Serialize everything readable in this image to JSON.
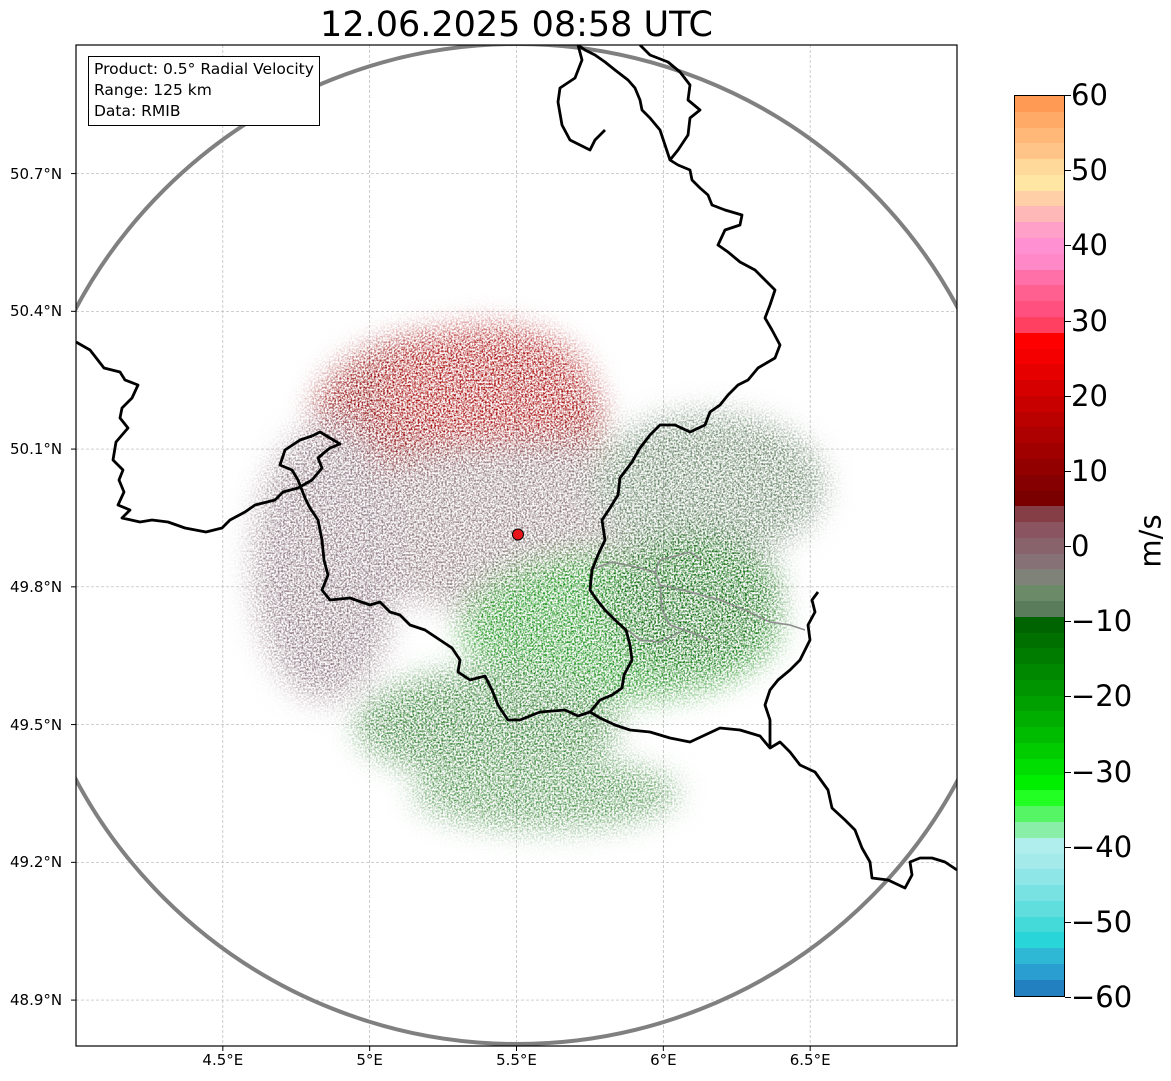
{
  "title": "12.06.2025 08:58 UTC",
  "info_box": {
    "product": "Product: 0.5° Radial Velocity",
    "range": "Range: 125 km",
    "data": "Data: RMIB"
  },
  "map": {
    "extent": {
      "lon_min": 4.0,
      "lon_max": 7.0,
      "lat_min": 48.8,
      "lat_max": 50.98
    },
    "lat_ticks": [
      {
        "value": 48.9,
        "label": "48.9°N"
      },
      {
        "value": 49.2,
        "label": "49.2°N"
      },
      {
        "value": 49.5,
        "label": "49.5°N"
      },
      {
        "value": 49.8,
        "label": "49.8°N"
      },
      {
        "value": 50.1,
        "label": "50.1°N"
      },
      {
        "value": 50.4,
        "label": "50.4°N"
      },
      {
        "value": 50.7,
        "label": "50.7°N"
      }
    ],
    "lon_ticks": [
      {
        "value": 4.5,
        "label": "4.5°E"
      },
      {
        "value": 5.0,
        "label": "5°E"
      },
      {
        "value": 5.5,
        "label": "5.5°E"
      },
      {
        "value": 6.0,
        "label": "6°E"
      },
      {
        "value": 6.5,
        "label": "6.5°E"
      }
    ],
    "radar_site": {
      "lon": 5.505,
      "lat": 49.914,
      "color": "#e8141a"
    },
    "range_ring_color": "#808080",
    "border_color": "#000000",
    "admin_border_color": "#8c8c8c",
    "grid": true,
    "velocity_zones": [
      {
        "name": "outbound-strong",
        "lon": 5.3,
        "lat": 50.16,
        "rlon": 0.5,
        "rlat": 0.2,
        "color": "#8e0000"
      },
      {
        "name": "outbound-core",
        "lon": 5.4,
        "lat": 50.24,
        "rlon": 0.35,
        "rlat": 0.13,
        "color": "#a40000"
      },
      {
        "name": "near-zero-band",
        "lon": 5.55,
        "lat": 49.92,
        "rlon": 0.7,
        "rlat": 0.18,
        "color": "#8a7378"
      },
      {
        "name": "near-zero-east",
        "lon": 6.15,
        "lat": 50.02,
        "rlon": 0.4,
        "rlat": 0.16,
        "color": "#5e7d5e"
      },
      {
        "name": "near-zero-west",
        "lon": 4.85,
        "lat": 49.85,
        "rlon": 0.25,
        "rlat": 0.3,
        "color": "#87707a"
      },
      {
        "name": "inbound-core",
        "lon": 5.85,
        "lat": 49.72,
        "rlon": 0.55,
        "rlat": 0.17,
        "color": "#0f8a0f"
      },
      {
        "name": "inbound-strong",
        "lon": 6.1,
        "lat": 49.78,
        "rlon": 0.3,
        "rlat": 0.16,
        "color": "#006400"
      },
      {
        "name": "inbound-south",
        "lon": 5.4,
        "lat": 49.5,
        "rlon": 0.45,
        "rlat": 0.12,
        "color": "#2a7a2a"
      },
      {
        "name": "sparse-south",
        "lon": 5.6,
        "lat": 49.35,
        "rlon": 0.45,
        "rlat": 0.08,
        "color": "#3f8b3f"
      }
    ]
  },
  "colorbar": {
    "unit": "m/s",
    "vmin": -60,
    "vmax": 60,
    "tick_values": [
      60,
      50,
      40,
      30,
      20,
      10,
      0,
      -10,
      -20,
      -30,
      -40,
      -50,
      -60
    ],
    "tick_labels": [
      "60",
      "50",
      "40",
      "30",
      "20",
      "10",
      "0",
      "−10",
      "−20",
      "−30",
      "−40",
      "−50",
      "−60"
    ],
    "colors_top_to_bottom": [
      "#ff9a55",
      "#ffaa66",
      "#ffb877",
      "#ffc588",
      "#ffd99a",
      "#ffe6a2",
      "#ffd0a8",
      "#ffb8b8",
      "#ffa0c8",
      "#ff90d2",
      "#ff88c8",
      "#ff70a8",
      "#ff6090",
      "#ff5080",
      "#ff4060",
      "#ff0000",
      "#f50000",
      "#e60000",
      "#d60000",
      "#c80000",
      "#bb0000",
      "#ad0000",
      "#a00000",
      "#920000",
      "#850000",
      "#7a0000",
      "#853e45",
      "#8a5560",
      "#88636c",
      "#867176",
      "#7e8278",
      "#6a8a68",
      "#5a7c5a",
      "#006400",
      "#007000",
      "#007c00",
      "#008800",
      "#009400",
      "#00a000",
      "#00ae00",
      "#00bc00",
      "#00cc00",
      "#00dd00",
      "#00ee00",
      "#22ff22",
      "#55f566",
      "#88eea8",
      "#b0eeee",
      "#a5eaea",
      "#8ee6e6",
      "#78e2e2",
      "#60dede",
      "#45dada",
      "#28d5d9",
      "#2fb8d6",
      "#2a9ed0",
      "#2280c0"
    ]
  }
}
